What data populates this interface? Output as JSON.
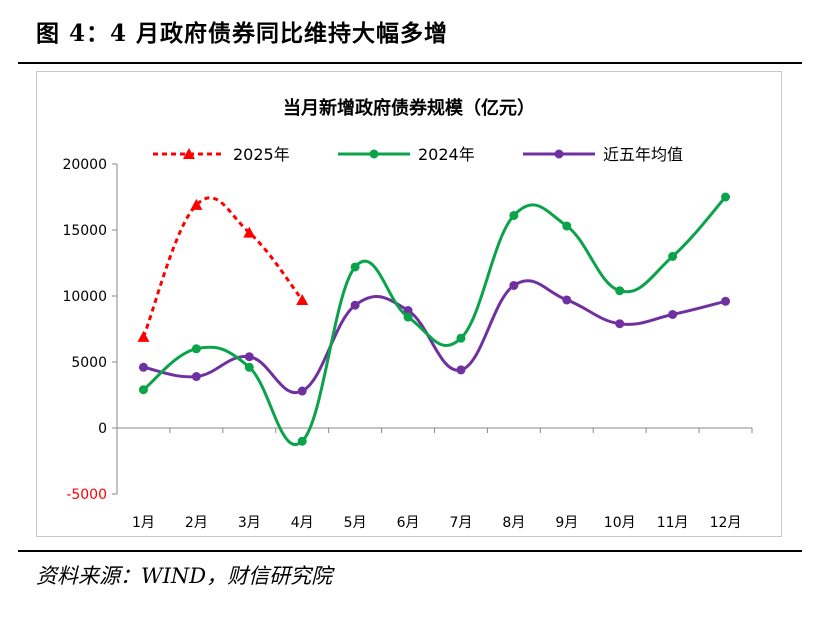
{
  "figure": {
    "title": "图 4：4 月政府债券同比维持大幅多增",
    "source": "资料来源：WIND，财信研究院"
  },
  "colors": {
    "series_2025": "#ff0000",
    "series_2024": "#0aa34a",
    "series_avg": "#7030a0",
    "axis": "#888888"
  },
  "chart_data": {
    "type": "line",
    "title": "当月新增政府债券规模（亿元）",
    "categories": [
      "1月",
      "2月",
      "3月",
      "4月",
      "5月",
      "6月",
      "7月",
      "8月",
      "9月",
      "10月",
      "11月",
      "12月"
    ],
    "ylim": [
      -5000,
      20000
    ],
    "yticks": [
      "20000",
      "15000",
      "10000",
      "5000",
      "0",
      "-5000"
    ],
    "grid": false,
    "legend": "top",
    "series": [
      {
        "name": "2025年",
        "style": "dashed-triangle",
        "values": [
          6900,
          16900,
          14800,
          9700,
          null,
          null,
          null,
          null,
          null,
          null,
          null,
          null
        ]
      },
      {
        "name": "2024年",
        "style": "solid-circle",
        "values": [
          2900,
          6000,
          4600,
          -1000,
          12200,
          8400,
          6800,
          16100,
          15300,
          10400,
          13000,
          17500
        ]
      },
      {
        "name": "近五年均值",
        "style": "solid-circle",
        "values": [
          4600,
          3900,
          5400,
          2800,
          9300,
          8900,
          4400,
          10800,
          9700,
          7900,
          8600,
          9600
        ]
      }
    ]
  }
}
